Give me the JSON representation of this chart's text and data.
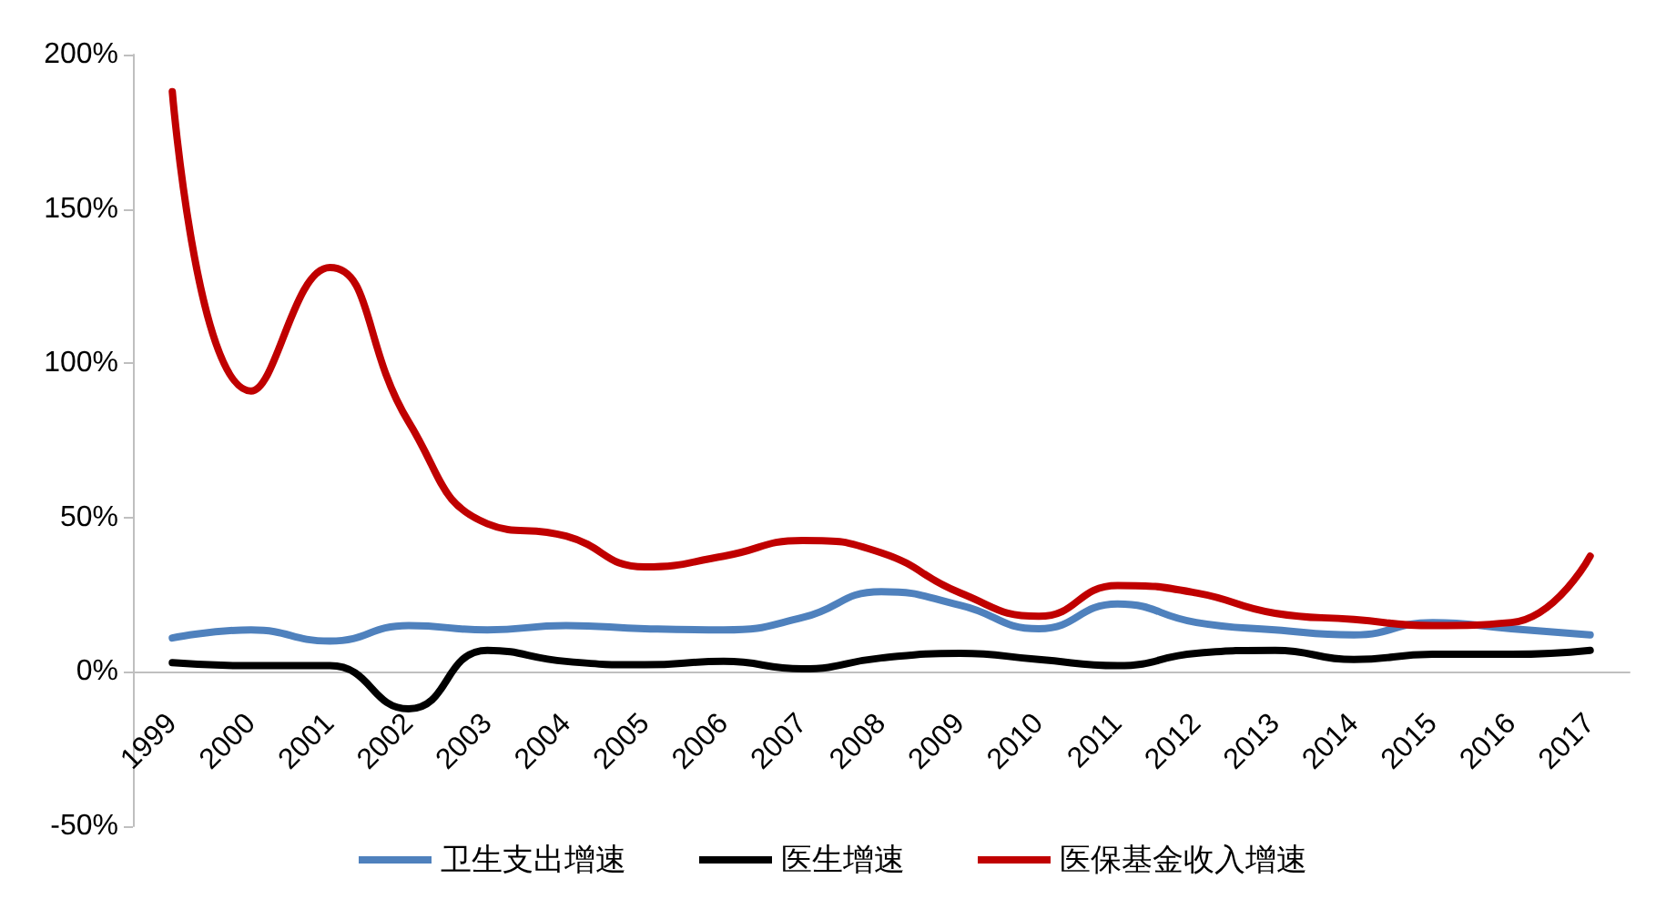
{
  "chart_data": {
    "type": "line",
    "categories": [
      "1999",
      "2000",
      "2001",
      "2002",
      "2003",
      "2004",
      "2005",
      "2006",
      "2007",
      "2008",
      "2009",
      "2010",
      "2011",
      "2012",
      "2013",
      "2014",
      "2015",
      "2016",
      "2017"
    ],
    "series": [
      {
        "name": "卫生支出增速",
        "color": "#4f81bd",
        "values": [
          11,
          13.6,
          10,
          15,
          13.6,
          15,
          14,
          13.6,
          17.6,
          26,
          21.6,
          14,
          22,
          16,
          13.6,
          12,
          16,
          14,
          12
        ]
      },
      {
        "name": "医生增速",
        "color": "#000000",
        "values": [
          3,
          2,
          2,
          -12,
          7,
          3.4,
          2.3,
          3.4,
          1,
          4.5,
          6,
          4,
          2,
          6,
          7,
          4,
          5.7,
          5.7,
          7
        ]
      },
      {
        "name": "医保基金收入增速",
        "color": "#c00000",
        "values": [
          188,
          91,
          131,
          81,
          48,
          44,
          34,
          37.5,
          42.6,
          38.6,
          25.6,
          18,
          28,
          25.6,
          19,
          17,
          15,
          16,
          37.5
        ]
      }
    ],
    "ylim": [
      -50,
      200
    ],
    "yticks": [
      {
        "value": -50,
        "label": "-50%"
      },
      {
        "value": 0,
        "label": "0%"
      },
      {
        "value": 50,
        "label": "50%"
      },
      {
        "value": 100,
        "label": "100%"
      },
      {
        "value": 150,
        "label": "150%"
      },
      {
        "value": 200,
        "label": "200%"
      }
    ],
    "grid": false,
    "legend": "bottom",
    "marker": "none",
    "line_style": "solid"
  }
}
